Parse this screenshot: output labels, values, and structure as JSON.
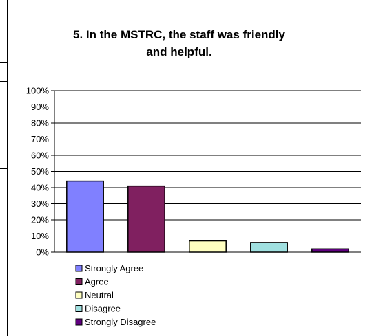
{
  "chart_data": {
    "type": "bar",
    "title": "5. In the MSTRC, the staff was friendly and helpful.",
    "title_lines": [
      "5. In the MSTRC, the staff was friendly",
      "and helpful."
    ],
    "categories": [
      "Strongly Agree",
      "Agree",
      "Neutral",
      "Disagree",
      "Strongly Disagree"
    ],
    "values": [
      44,
      41,
      7,
      6,
      2
    ],
    "colors": [
      "#8080ff",
      "#802060",
      "#ffffc0",
      "#a0e0e0",
      "#600080"
    ],
    "ylim": [
      0,
      100
    ],
    "yticks": [
      "0%",
      "10%",
      "20%",
      "30%",
      "40%",
      "50%",
      "60%",
      "70%",
      "80%",
      "90%",
      "100%"
    ],
    "xlabel": "",
    "ylabel": "",
    "grid": true,
    "legend": "bottom-left"
  }
}
